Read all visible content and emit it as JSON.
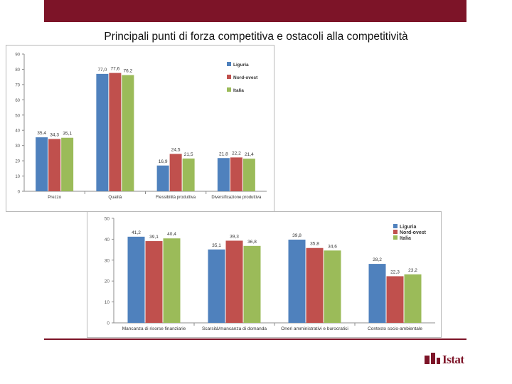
{
  "slide": {
    "title": "Principali punti di forza competitiva e ostacoli alla competitività",
    "logo_text": "Istat"
  },
  "colors": {
    "brand": "#7d1428",
    "Liguria": "#4f81bd",
    "Nord-ovest": "#c0504d",
    "Italia": "#9bbb59"
  },
  "chart_data": [
    {
      "type": "bar",
      "categories": [
        "Prezzo",
        "Qualità",
        "Flessibilità produttiva",
        "Diversificazione produttiva"
      ],
      "series": [
        {
          "name": "Liguria",
          "values": [
            35.4,
            77.0,
            16.9,
            21.8
          ],
          "labels": [
            "35,4",
            "77,0",
            "16,9",
            "21,8"
          ]
        },
        {
          "name": "Nord-ovest",
          "values": [
            34.3,
            77.6,
            24.5,
            22.2
          ],
          "labels": [
            "34,3",
            "77,6",
            "24,5",
            "22,2"
          ]
        },
        {
          "name": "Italia",
          "values": [
            35.1,
            76.2,
            21.5,
            21.4
          ],
          "labels": [
            "35,1",
            "76,2",
            "21,5",
            "21,4"
          ]
        }
      ],
      "ylim": [
        0,
        90
      ],
      "yticks": [
        "0",
        "10",
        "20",
        "30",
        "40",
        "50",
        "60",
        "70",
        "80",
        "90"
      ],
      "legend": [
        "Liguria",
        "Nord-ovest",
        "Italia"
      ],
      "legend_position": "top-right",
      "grid": false
    },
    {
      "type": "bar",
      "categories": [
        "Mancanza di risorse finanziarie",
        "Scarsità/mancanza di domanda",
        "Oneri amministrativi e burocratici",
        "Contesto socio-ambientale"
      ],
      "series": [
        {
          "name": "Liguria",
          "values": [
            41.2,
            35.1,
            39.8,
            28.2
          ],
          "labels": [
            "41,2",
            "35,1",
            "39,8",
            "28,2"
          ]
        },
        {
          "name": "Nord-ovest",
          "values": [
            39.1,
            39.3,
            35.8,
            22.3
          ],
          "labels": [
            "39,1",
            "39,3",
            "35,8",
            "22,3"
          ]
        },
        {
          "name": "Italia",
          "values": [
            40.4,
            36.8,
            34.6,
            23.2
          ],
          "labels": [
            "40,4",
            "36,8",
            "34,6",
            "23,2"
          ]
        }
      ],
      "ylim": [
        0,
        50
      ],
      "yticks": [
        "0",
        "10",
        "20",
        "30",
        "40",
        "50"
      ],
      "legend": [
        "Liguria",
        "Nord-ovest",
        "Italia"
      ],
      "legend_position": "top-right",
      "grid": false
    }
  ]
}
